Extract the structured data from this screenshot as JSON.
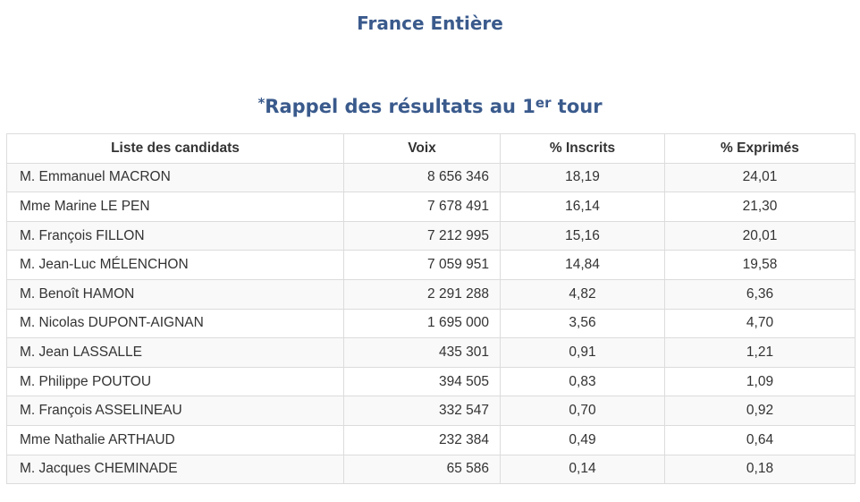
{
  "header": {
    "title": "France Entière"
  },
  "section": {
    "asterisk": "*",
    "title_part1": "Rappel des résultats au 1",
    "title_sup": "er",
    "title_part2": " tour"
  },
  "table": {
    "columns": [
      "Liste des candidats",
      "Voix",
      "% Inscrits",
      "% Exprimés"
    ],
    "rows": [
      {
        "candidate": "M. Emmanuel MACRON",
        "voix": "8 656 346",
        "inscrits": "18,19",
        "exprimes": "24,01"
      },
      {
        "candidate": "Mme Marine LE PEN",
        "voix": "7 678 491",
        "inscrits": "16,14",
        "exprimes": "21,30"
      },
      {
        "candidate": "M. François FILLON",
        "voix": "7 212 995",
        "inscrits": "15,16",
        "exprimes": "20,01"
      },
      {
        "candidate": "M. Jean-Luc MÉLENCHON",
        "voix": "7 059 951",
        "inscrits": "14,84",
        "exprimes": "19,58"
      },
      {
        "candidate": "M. Benoît HAMON",
        "voix": "2 291 288",
        "inscrits": "4,82",
        "exprimes": "6,36"
      },
      {
        "candidate": "M. Nicolas DUPONT-AIGNAN",
        "voix": "1 695 000",
        "inscrits": "3,56",
        "exprimes": "4,70"
      },
      {
        "candidate": "M. Jean LASSALLE",
        "voix": "435 301",
        "inscrits": "0,91",
        "exprimes": "1,21"
      },
      {
        "candidate": "M. Philippe POUTOU",
        "voix": "394 505",
        "inscrits": "0,83",
        "exprimes": "1,09"
      },
      {
        "candidate": "M. François ASSELINEAU",
        "voix": "332 547",
        "inscrits": "0,70",
        "exprimes": "0,92"
      },
      {
        "candidate": "Mme Nathalie ARTHAUD",
        "voix": "232 384",
        "inscrits": "0,49",
        "exprimes": "0,64"
      },
      {
        "candidate": "M. Jacques CHEMINADE",
        "voix": "65 586",
        "inscrits": "0,14",
        "exprimes": "0,18"
      }
    ]
  }
}
